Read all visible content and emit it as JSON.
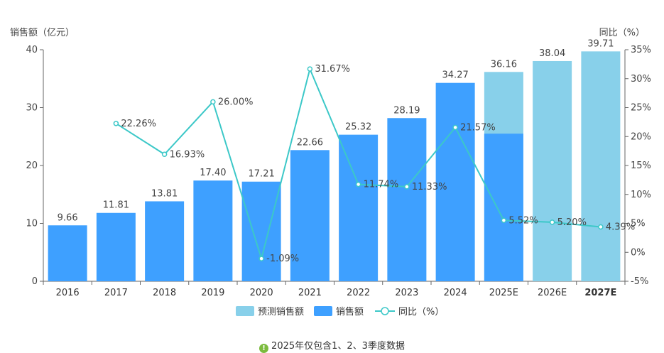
{
  "chart_data": {
    "type": "bar",
    "ylabel_left": "销售额（亿元）",
    "ylabel_right": "同比（%）",
    "categories": [
      "2016",
      "2017",
      "2018",
      "2019",
      "2020",
      "2021",
      "2022",
      "2023",
      "2024",
      "2025E",
      "2026E",
      "2027E"
    ],
    "ylim_left": [
      0,
      40
    ],
    "yticks_left": [
      0,
      10,
      20,
      30,
      40
    ],
    "ylim_right": [
      -5,
      35
    ],
    "yticks_right": [
      "-5%",
      "0%",
      "5%",
      "10%",
      "15%",
      "20%",
      "25%",
      "30%",
      "35%"
    ],
    "series": [
      {
        "name": "预测销售额",
        "kind": "bar",
        "color": "#88d0ea",
        "values": [
          null,
          null,
          null,
          null,
          null,
          null,
          null,
          null,
          null,
          36.16,
          38.04,
          39.71
        ],
        "labels": [
          "",
          "",
          "",
          "",
          "",
          "",
          "",
          "",
          "",
          "36.16",
          "38.04",
          "39.71"
        ]
      },
      {
        "name": "销售额",
        "kind": "bar",
        "color": "#3ea0ff",
        "values": [
          9.66,
          11.81,
          13.81,
          17.4,
          17.21,
          22.66,
          25.32,
          28.19,
          34.27,
          25.5,
          null,
          null
        ],
        "labels": [
          "9.66",
          "11.81",
          "13.81",
          "17.40",
          "17.21",
          "22.66",
          "25.32",
          "28.19",
          "34.27",
          "",
          "",
          ""
        ]
      },
      {
        "name": "同比（%）",
        "kind": "line",
        "color": "#3cc8c8",
        "values": [
          null,
          22.26,
          16.93,
          26.0,
          -1.09,
          31.67,
          11.74,
          11.33,
          21.57,
          5.52,
          5.2,
          4.39
        ],
        "labels": [
          "",
          "22.26%",
          "16.93%",
          "26.00%",
          "-1.09%",
          "31.67%",
          "11.74%",
          "11.33%",
          "21.57%",
          "5.52%",
          "5.20%",
          "4.39%"
        ]
      }
    ],
    "legend_position": "bottom",
    "grid": false
  },
  "footnote": {
    "icon": "exclamation-icon",
    "text": "2025年仅包含1、2、3季度数据"
  }
}
